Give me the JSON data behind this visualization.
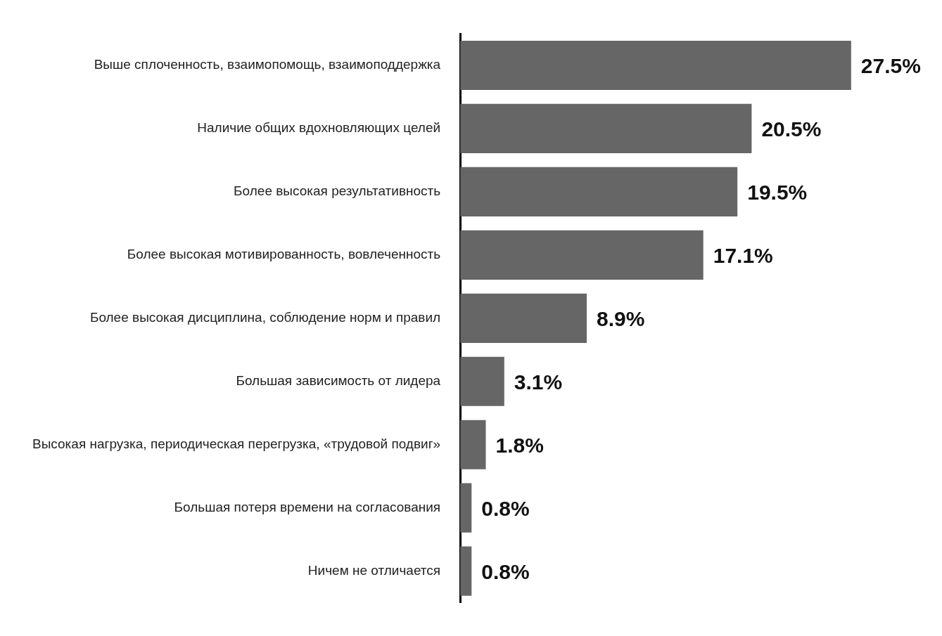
{
  "chart_data": {
    "type": "bar",
    "orientation": "horizontal",
    "categories": [
      "Выше сплоченность, взаимопомощь, взаимоподдержка",
      "Наличие общих вдохновляющих целей",
      "Более высокая результативность",
      "Более высокая мотивированность, вовлеченность",
      "Более высокая дисциплина, соблюдение норм и правил",
      "Большая зависимость от лидера",
      "Высокая нагрузка, периодическая перегрузка, «трудовой подвиг»",
      "Большая потеря времени на согласования",
      "Ничем не отличается"
    ],
    "values": [
      27.5,
      20.5,
      19.5,
      17.1,
      8.9,
      3.1,
      1.8,
      0.8,
      0.8
    ],
    "value_labels": [
      "27.5%",
      "20.5%",
      "19.5%",
      "17.1%",
      "8.9%",
      "3.1%",
      "1.8%",
      "0.8%",
      "0.8%"
    ],
    "color": "#666666",
    "grid": false,
    "legend": false
  }
}
